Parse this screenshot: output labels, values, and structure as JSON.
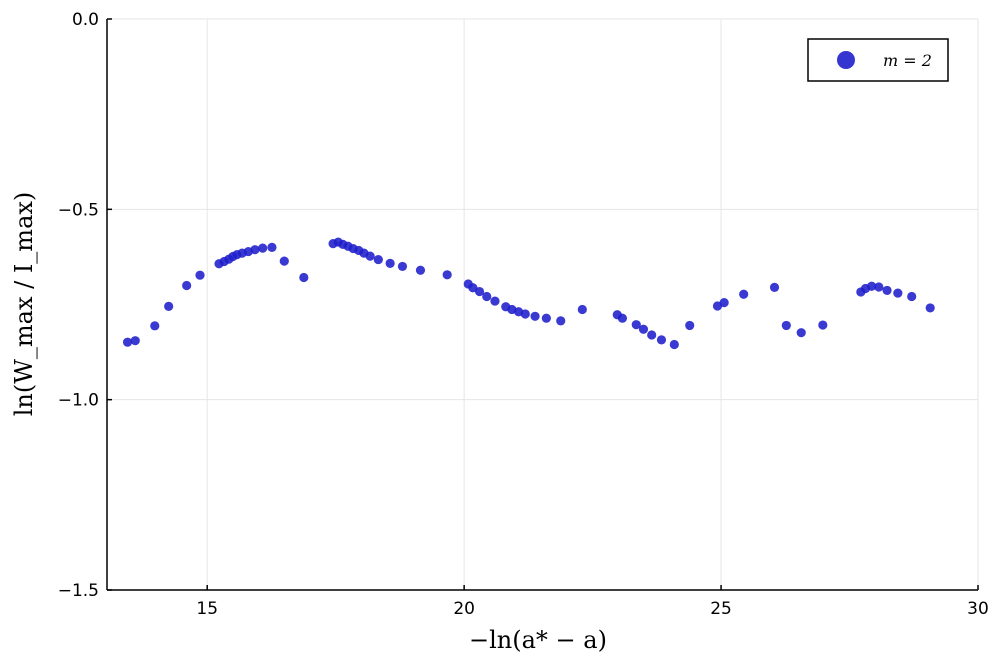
{
  "chart_data": {
    "type": "scatter",
    "xlabel": "−ln(a* − a)",
    "ylabel": "ln(W_max / I_max)",
    "xlim": [
      13.05,
      30.0
    ],
    "ylim": [
      -1.5,
      0.0
    ],
    "xticks": [
      15,
      20,
      25,
      30
    ],
    "xtick_labels": [
      "15",
      "20",
      "25",
      "30"
    ],
    "yticks": [
      0.0,
      -0.5,
      -1.0,
      -1.5
    ],
    "ytick_labels": [
      "0.0",
      "−0.5",
      "−1.0",
      "−1.5"
    ],
    "grid": true,
    "legend_position": "top-right",
    "marker_color": "#1f1fcc",
    "series": [
      {
        "name": "m = 2",
        "x": [
          13.45,
          13.6,
          13.98,
          14.25,
          14.6,
          14.86,
          15.23,
          15.33,
          15.42,
          15.5,
          15.58,
          15.68,
          15.8,
          15.93,
          16.08,
          16.26,
          16.5,
          16.88,
          17.45,
          17.55,
          17.64,
          17.74,
          17.84,
          17.95,
          18.05,
          18.17,
          18.33,
          18.56,
          18.8,
          19.15,
          19.67,
          20.08,
          20.17,
          20.3,
          20.44,
          20.6,
          20.81,
          20.93,
          21.06,
          21.19,
          21.38,
          21.6,
          21.88,
          22.3,
          22.98,
          23.08,
          23.35,
          23.49,
          23.65,
          23.84,
          24.09,
          24.39,
          24.93,
          25.06,
          25.44,
          26.04,
          26.27,
          26.56,
          26.98,
          27.72,
          27.81,
          27.93,
          28.07,
          28.23,
          28.44,
          28.71,
          29.07
        ],
        "y": [
          -0.849,
          -0.845,
          -0.806,
          -0.755,
          -0.7,
          -0.673,
          -0.643,
          -0.637,
          -0.631,
          -0.624,
          -0.619,
          -0.615,
          -0.611,
          -0.606,
          -0.602,
          -0.6,
          -0.636,
          -0.679,
          -0.59,
          -0.586,
          -0.592,
          -0.597,
          -0.603,
          -0.608,
          -0.615,
          -0.623,
          -0.632,
          -0.642,
          -0.65,
          -0.66,
          -0.672,
          -0.696,
          -0.706,
          -0.716,
          -0.729,
          -0.741,
          -0.756,
          -0.763,
          -0.769,
          -0.775,
          -0.781,
          -0.786,
          -0.793,
          -0.763,
          -0.777,
          -0.786,
          -0.803,
          -0.815,
          -0.83,
          -0.843,
          -0.855,
          -0.805,
          -0.754,
          -0.745,
          -0.723,
          -0.705,
          -0.805,
          -0.824,
          -0.804,
          -0.717,
          -0.708,
          -0.702,
          -0.704,
          -0.713,
          -0.72,
          -0.729,
          -0.759
        ]
      }
    ]
  }
}
